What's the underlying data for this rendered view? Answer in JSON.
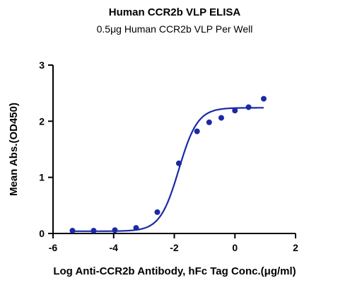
{
  "chart_data": {
    "type": "scatter",
    "title": "Human CCR2b VLP ELISA",
    "subtitle": "0.5μg Human CCR2b VLP Per Well",
    "xlabel": "Log Anti-CCR2b Antibody, hFc Tag Conc.(μg/ml)",
    "ylabel": "Mean Abs.(OD450)",
    "xlim": [
      -6,
      2
    ],
    "ylim": [
      0,
      3
    ],
    "x_ticks": [
      "-6",
      "-4",
      "-2",
      "0",
      "2"
    ],
    "y_ticks": [
      "0",
      "1",
      "2",
      "3"
    ],
    "color": "#1a2aa6",
    "grid": false,
    "series": [
      {
        "points": [
          {
            "x": -5.36,
            "y": 0.05
          },
          {
            "x": -4.66,
            "y": 0.05
          },
          {
            "x": -3.96,
            "y": 0.06
          },
          {
            "x": -3.26,
            "y": 0.1
          },
          {
            "x": -2.56,
            "y": 0.38
          },
          {
            "x": -1.85,
            "y": 1.25
          },
          {
            "x": -1.25,
            "y": 1.82
          },
          {
            "x": -0.85,
            "y": 1.98
          },
          {
            "x": -0.45,
            "y": 2.06
          },
          {
            "x": 0.0,
            "y": 2.19
          },
          {
            "x": 0.45,
            "y": 2.25
          },
          {
            "x": 0.95,
            "y": 2.4
          }
        ],
        "fit": {
          "model": "4PL",
          "bottom": 0.04,
          "top": 2.24,
          "logEC50": -1.85,
          "hillslope": 1.4
        }
      }
    ]
  }
}
